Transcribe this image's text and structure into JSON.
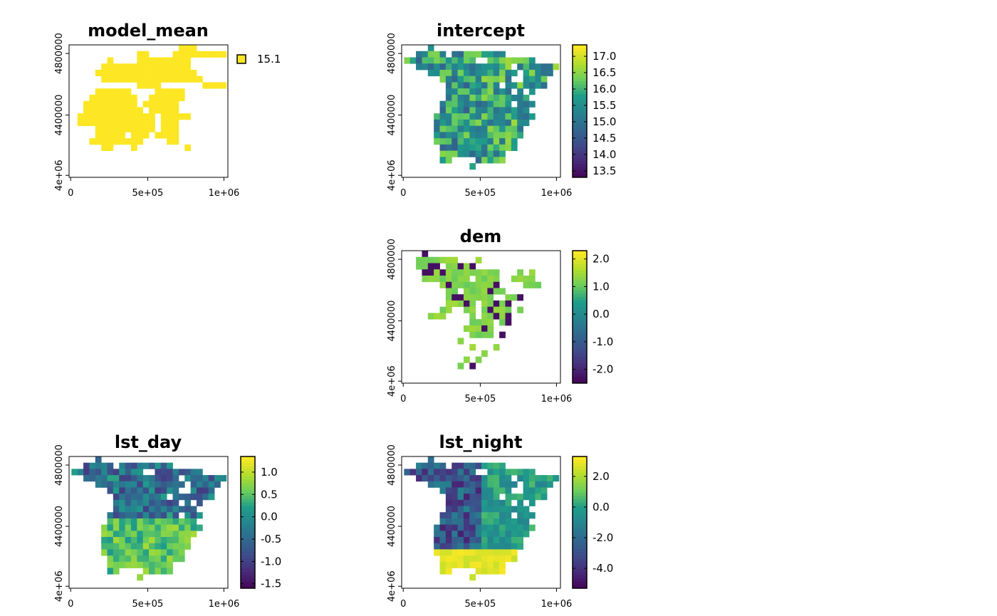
{
  "chart_data": [
    {
      "type": "heatmap",
      "title": "model_mean",
      "x_ticks": [
        "0",
        "5e+05",
        "1e+06"
      ],
      "y_ticks": [
        "4e+06",
        "4400000",
        "4800000"
      ],
      "legend": {
        "kind": "categorical",
        "entries": [
          {
            "label": "15.1",
            "color": "#FDE725"
          }
        ]
      },
      "grid": {
        "cols": 26,
        "rows": [
          "..................***.....",
          "...........**....*********",
          "......*....*********......",
          ".....***************......",
          "....*****************.....",
          ".....*****************....",
          "...........****.......****",
          "....******....*****.......",
          "...********..******.......",
          "..*********.******........",
          "..**********.*****........",
          ".*************.*****......",
          ".*************.***........",
          "....**********.***........",
          "....*****.***.****........",
          "...*********....**........",
          ".....**...*........*......",
          "..........................",
          "..........................",
          ".........................."
        ],
        "value": 15.1
      }
    },
    {
      "type": "heatmap",
      "title": "intercept",
      "x_ticks": [
        "0",
        "5e+05",
        "1e+06"
      ],
      "y_ticks": [
        "4e+06",
        "4400000",
        "4800000"
      ],
      "legend": {
        "kind": "continuous",
        "min": 13.3,
        "max": 17.35,
        "ticks": [
          "17.0",
          "16.5",
          "16.0",
          "15.5",
          "15.0",
          "14.5",
          "14.0",
          "13.5"
        ]
      },
      "colorscale": "viridis"
    },
    {
      "type": "heatmap",
      "title": "dem",
      "x_ticks": [
        "0",
        "5e+05",
        "1e+06"
      ],
      "y_ticks": [
        "4e+06",
        "4400000",
        "4800000"
      ],
      "legend": {
        "kind": "continuous",
        "min": -2.5,
        "max": 2.3,
        "ticks": [
          "2.0",
          "1.0",
          "0.0",
          "-1.0",
          "-2.0"
        ]
      },
      "colorscale": "viridis"
    },
    {
      "type": "heatmap",
      "title": "lst_day",
      "x_ticks": [
        "0",
        "5e+05",
        "1e+06"
      ],
      "y_ticks": [
        "4e+06",
        "4400000",
        "4800000"
      ],
      "legend": {
        "kind": "continuous",
        "min": -1.6,
        "max": 1.35,
        "ticks": [
          "1.0",
          "0.5",
          "0.0",
          "-0.5",
          "-1.0",
          "-1.5"
        ]
      },
      "colorscale": "viridis"
    },
    {
      "type": "heatmap",
      "title": "lst_night",
      "x_ticks": [
        "0",
        "5e+05",
        "1e+06"
      ],
      "y_ticks": [
        "4e+06",
        "4400000",
        "4800000"
      ],
      "legend": {
        "kind": "continuous",
        "min": -5.3,
        "max": 3.3,
        "ticks": [
          "2.0",
          "0.0",
          "-2.0",
          "-4.0"
        ]
      },
      "colorscale": "viridis"
    }
  ]
}
